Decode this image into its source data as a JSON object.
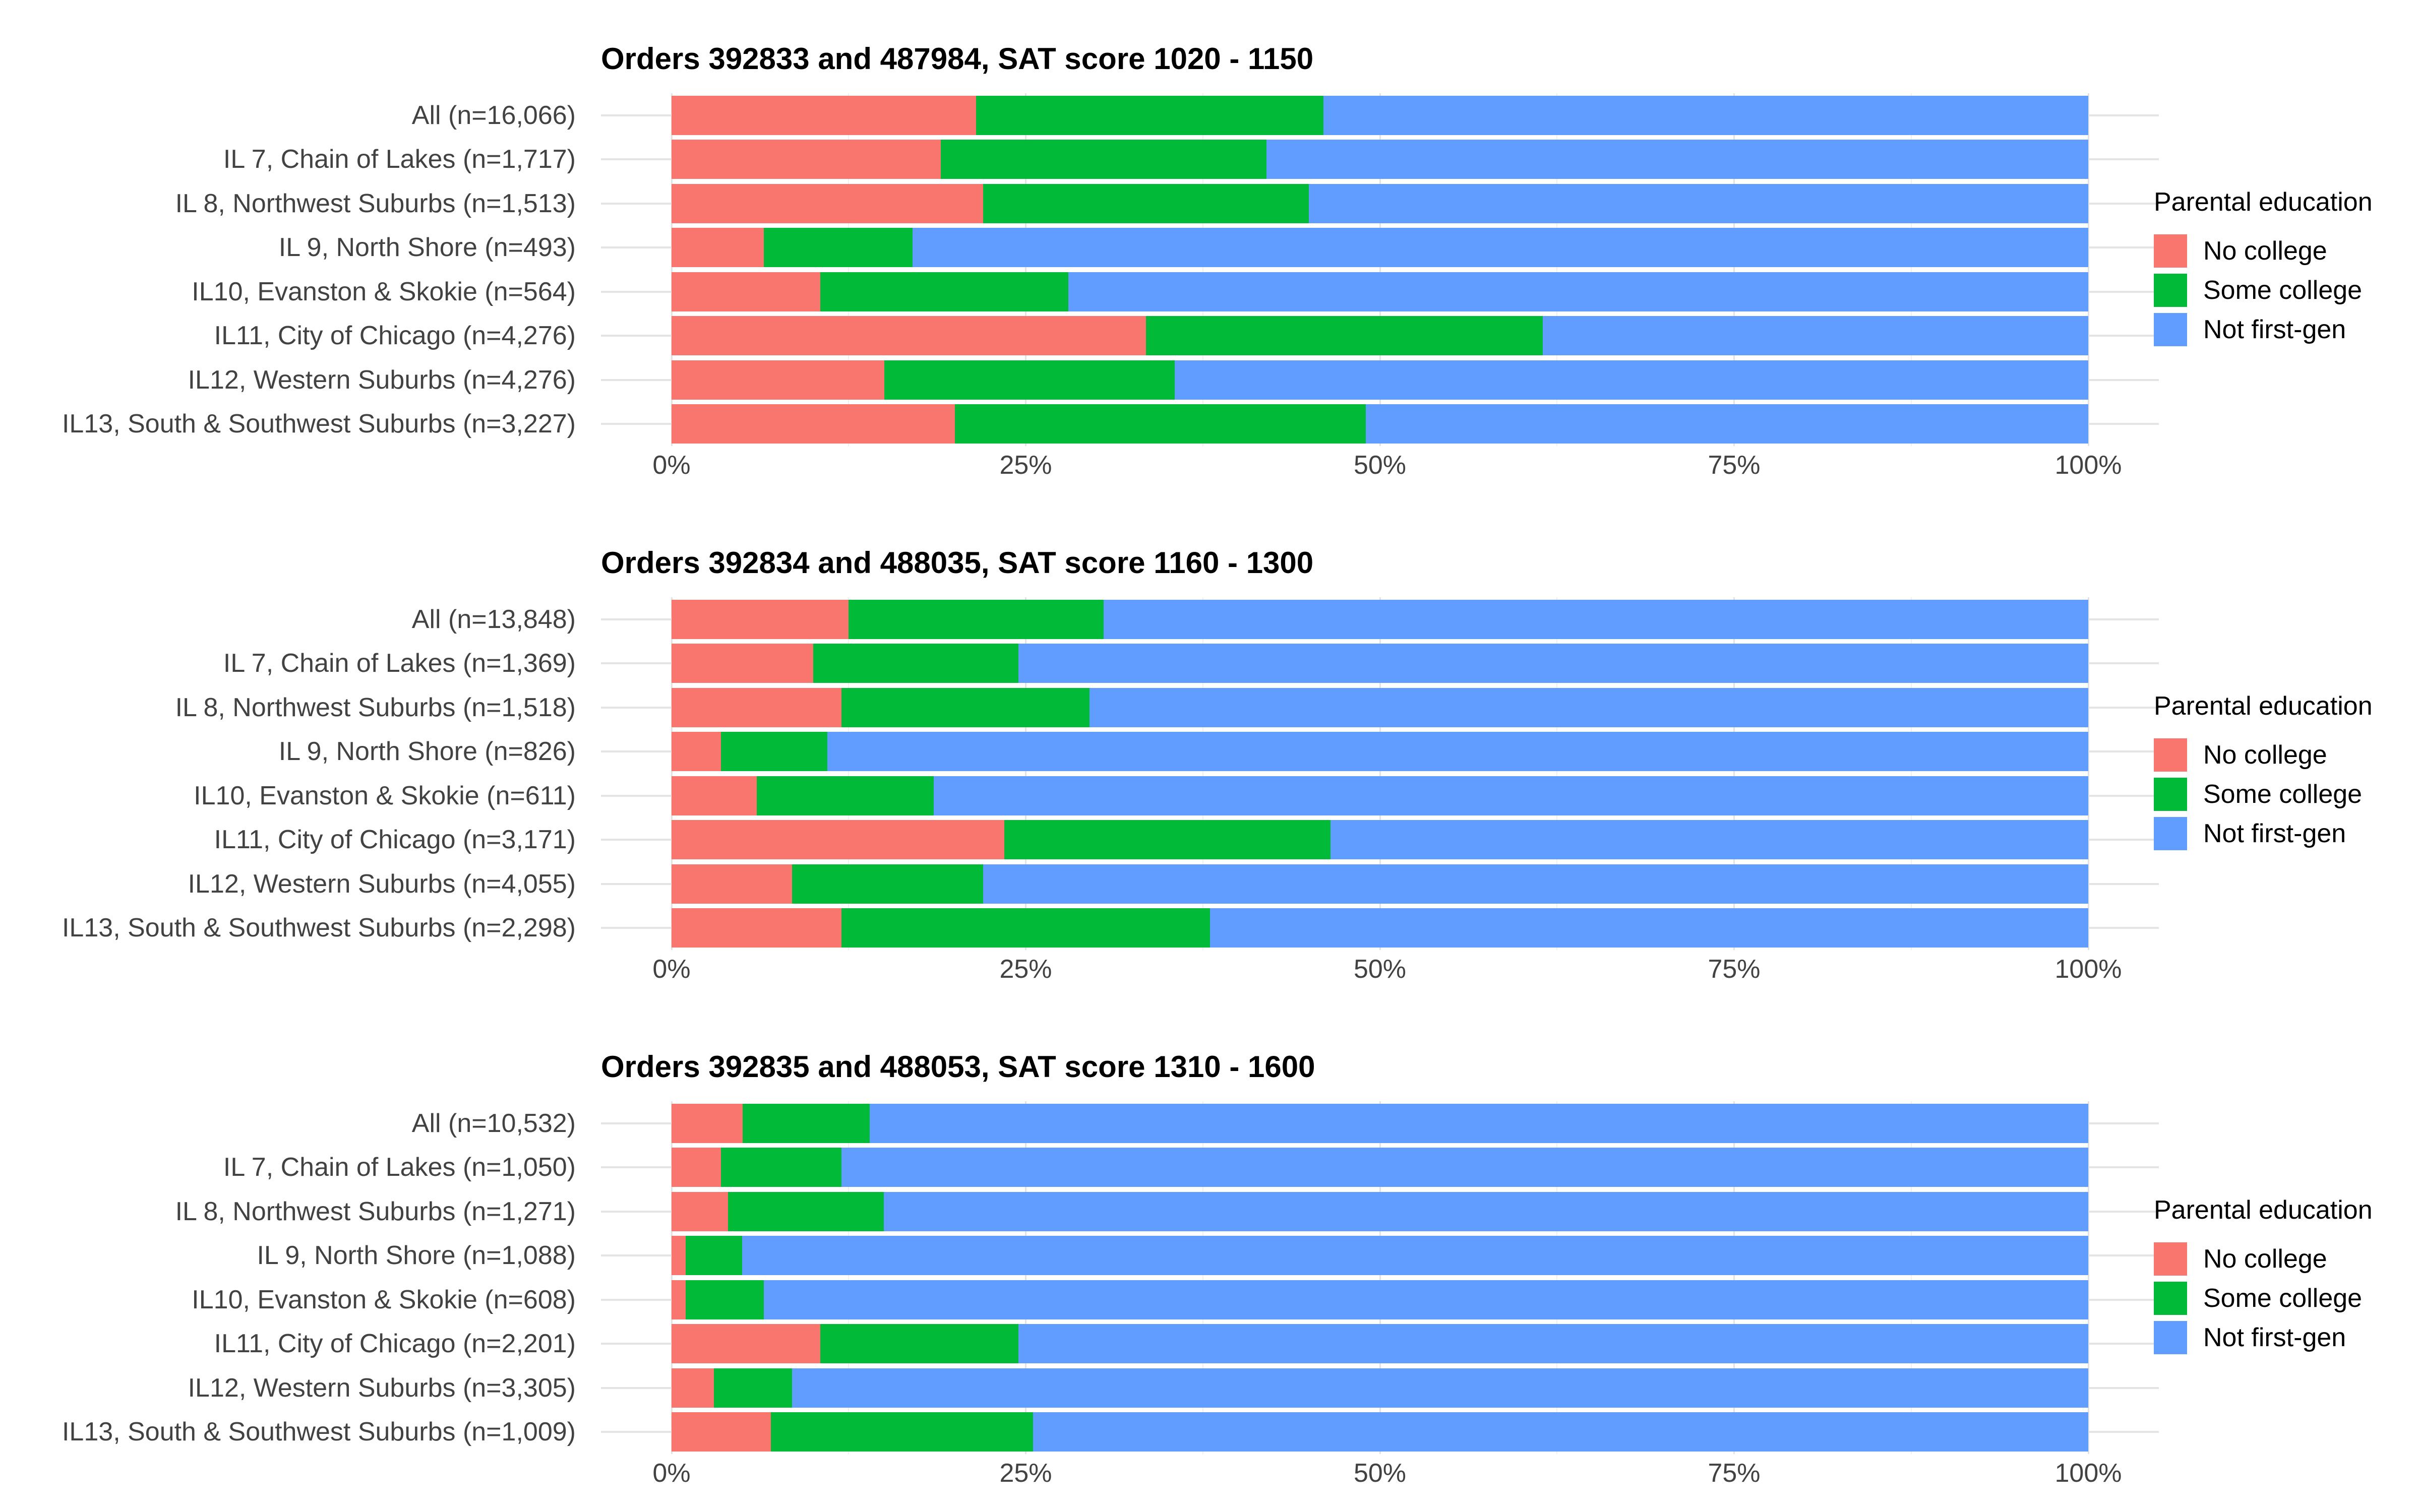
{
  "figure": {
    "background": "#FFFFFF",
    "axis_text_color": "#424242",
    "grid_major_color": "#E3E3E3",
    "grid_minor_color": "#F0F0F0"
  },
  "legend": {
    "title": "Parental education",
    "items": [
      {
        "label": "No college",
        "color": "#F8766D"
      },
      {
        "label": "Some college",
        "color": "#00BA38"
      },
      {
        "label": "Not first-gen",
        "color": "#619CFF"
      }
    ]
  },
  "x_axis": {
    "ticks": [
      "0%",
      "25%",
      "50%",
      "75%",
      "100%"
    ],
    "tick_values": [
      0,
      25,
      50,
      75,
      100
    ],
    "minor_values": [
      12.5,
      37.5,
      62.5,
      87.5
    ],
    "range": [
      0,
      100
    ]
  },
  "chart_data": [
    {
      "type": "bar",
      "stacked": true,
      "orientation": "horizontal",
      "title": "Orders 392833 and 487984, SAT score 1020 - 1150",
      "xlabel": "",
      "ylabel": "",
      "xlim": [
        0,
        100
      ],
      "grid": true,
      "legend_position": "right",
      "categories": [
        "All (n=16,066)",
        "IL 7, Chain of Lakes (n=1,717)",
        "IL 8, Northwest Suburbs (n=1,513)",
        "IL 9, North Shore (n=493)",
        "IL10, Evanston & Skokie (n=564)",
        "IL11, City of Chicago (n=4,276)",
        "IL12, Western Suburbs (n=4,276)",
        "IL13, South & Southwest Suburbs (n=3,227)"
      ],
      "series": [
        {
          "name": "No college",
          "color": "#F8766D",
          "values": [
            21.5,
            19,
            22,
            6.5,
            10.5,
            33.5,
            15,
            20
          ]
        },
        {
          "name": "Some college",
          "color": "#00BA38",
          "values": [
            24.5,
            23,
            23,
            10.5,
            17.5,
            28,
            20.5,
            29
          ]
        },
        {
          "name": "Not first-gen",
          "color": "#619CFF",
          "values": [
            54,
            58,
            55,
            83,
            72,
            38.5,
            64.5,
            51
          ]
        }
      ]
    },
    {
      "type": "bar",
      "stacked": true,
      "orientation": "horizontal",
      "title": "Orders 392834 and 488035, SAT score 1160 - 1300",
      "xlabel": "",
      "ylabel": "",
      "xlim": [
        0,
        100
      ],
      "grid": true,
      "legend_position": "right",
      "categories": [
        "All (n=13,848)",
        "IL 7, Chain of Lakes (n=1,369)",
        "IL 8, Northwest Suburbs (n=1,518)",
        "IL 9, North Shore (n=826)",
        "IL10, Evanston & Skokie (n=611)",
        "IL11, City of Chicago (n=3,171)",
        "IL12, Western Suburbs (n=4,055)",
        "IL13, South & Southwest Suburbs (n=2,298)"
      ],
      "series": [
        {
          "name": "No college",
          "color": "#F8766D",
          "values": [
            12.5,
            10,
            12,
            3.5,
            6,
            23.5,
            8.5,
            12
          ]
        },
        {
          "name": "Some college",
          "color": "#00BA38",
          "values": [
            18,
            14.5,
            17.5,
            7.5,
            12.5,
            23,
            13.5,
            26
          ]
        },
        {
          "name": "Not first-gen",
          "color": "#619CFF",
          "values": [
            69.5,
            75.5,
            70.5,
            89,
            81.5,
            53.5,
            78,
            62
          ]
        }
      ]
    },
    {
      "type": "bar",
      "stacked": true,
      "orientation": "horizontal",
      "title": "Orders 392835 and 488053, SAT score 1310 - 1600",
      "xlabel": "",
      "ylabel": "",
      "xlim": [
        0,
        100
      ],
      "grid": true,
      "legend_position": "right",
      "categories": [
        "All (n=10,532)",
        "IL 7, Chain of Lakes (n=1,050)",
        "IL 8, Northwest Suburbs (n=1,271)",
        "IL 9, North Shore (n=1,088)",
        "IL10, Evanston & Skokie (n=608)",
        "IL11, City of Chicago (n=2,201)",
        "IL12, Western Suburbs (n=3,305)",
        "IL13, South & Southwest Suburbs (n=1,009)"
      ],
      "series": [
        {
          "name": "No college",
          "color": "#F8766D",
          "values": [
            5,
            3.5,
            4,
            1,
            1,
            10.5,
            3,
            7
          ]
        },
        {
          "name": "Some college",
          "color": "#00BA38",
          "values": [
            9,
            8.5,
            11,
            4,
            5.5,
            14,
            5.5,
            18.5
          ]
        },
        {
          "name": "Not first-gen",
          "color": "#619CFF",
          "values": [
            86,
            88,
            85,
            95,
            93.5,
            75.5,
            91.5,
            74.5
          ]
        }
      ]
    }
  ]
}
